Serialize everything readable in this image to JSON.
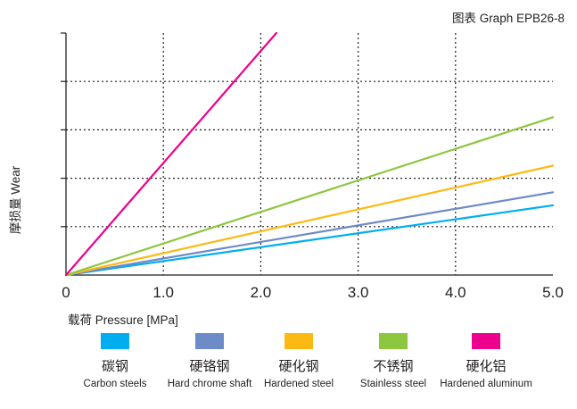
{
  "header": {
    "graph_title": "图表 Graph EPB26-8"
  },
  "chart_data": {
    "type": "line",
    "title": "图表 Graph EPB26-8",
    "xlabel": "载荷 Pressure [MPa]",
    "ylabel": "摩损量 Wear",
    "xlim": [
      0,
      5.0
    ],
    "ylim": [
      0,
      5
    ],
    "xticks": [
      "0",
      "1.0",
      "2.0",
      "3.0",
      "4.0",
      "5.0"
    ],
    "grid": "dotted",
    "legend_position": "bottom",
    "series": [
      {
        "name": "碳钢 Carbon steels",
        "color": "#00aeef",
        "x": [
          0,
          5.0
        ],
        "y": [
          0,
          1.44
        ]
      },
      {
        "name": "硬铬钢 Hard chrome shaft",
        "color": "#6d8bc7",
        "x": [
          0,
          5.0
        ],
        "y": [
          0,
          1.71
        ]
      },
      {
        "name": "硬化钢 Hardened steel",
        "color": "#fdb913",
        "x": [
          0,
          5.0
        ],
        "y": [
          0,
          2.26
        ]
      },
      {
        "name": "不锈钢 Stainless steel",
        "color": "#8dc63f",
        "x": [
          0,
          5.0
        ],
        "y": [
          0,
          3.26
        ]
      },
      {
        "name": "硬化铝 Hardened aluminum",
        "color": "#ec008c",
        "x": [
          0,
          2.16
        ],
        "y": [
          0,
          5.0
        ]
      }
    ]
  },
  "legend": [
    {
      "cn": "碳钢",
      "en": "Carbon steels",
      "color": "#00aeef"
    },
    {
      "cn": "硬铬钢",
      "en": "Hard chrome shaft",
      "color": "#6d8bc7"
    },
    {
      "cn": "硬化钢",
      "en": "Hardened steel",
      "color": "#fdb913"
    },
    {
      "cn": "不锈钢",
      "en": "Stainless steel",
      "color": "#8dc63f"
    },
    {
      "cn": "硬化铝",
      "en": "Hardened aluminum",
      "color": "#ec008c"
    }
  ]
}
